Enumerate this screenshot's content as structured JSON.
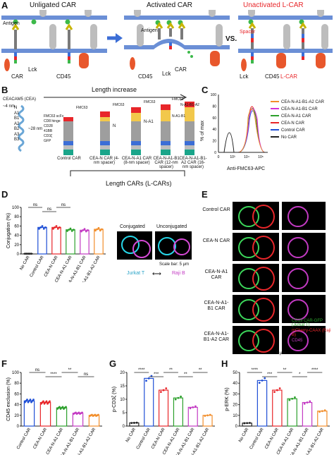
{
  "panel_a": {
    "label": "A",
    "titles": [
      "Unligated CAR",
      "Activated CAR",
      "Unactivated L-CAR"
    ],
    "labels": {
      "antigen": "Antigen",
      "car": "CAR",
      "lck": "Lck",
      "cd45": "CD45",
      "spacer": "Spacer",
      "lcar": "L-CAR",
      "vs": "VS."
    }
  },
  "panel_b": {
    "label": "B",
    "title": "Length increase",
    "ceacam5": "CEACAM5 (CEA)",
    "nm4": "~4 nm",
    "nm28": "~28 nm",
    "domains": [
      "N",
      "A1",
      "B1",
      "A2",
      "B2",
      "A3",
      "B3"
    ],
    "legend": [
      "FMC63 scFv",
      "CD8 hinge",
      "CD28",
      "41BB",
      "CD3ζ",
      "GFP"
    ],
    "fmc63": "FMC63",
    "constructs": [
      {
        "name": "Control CAR",
        "domain_label": ""
      },
      {
        "name": "CEA-N CAR (4-nm spacer)",
        "domain_label": "N"
      },
      {
        "name": "CEA-N-A1 CAR (8-nm spacer)",
        "domain_label": "N-A1"
      },
      {
        "name": "CEA-N-A1-B1 CAR (12-nm spacer)",
        "domain_label": "N-A1-B1"
      },
      {
        "name": "CEA-N-A1-B1-A2 CAR (16-nm spacer)",
        "domain_label": "N-A1-B1-A2"
      }
    ],
    "footer": "Length CARs (L-CARs)"
  },
  "panel_c": {
    "label": "C",
    "ylabel": "% of max",
    "xlabel": "Anti-FMC63-APC",
    "legend": [
      {
        "name": "CEA-N-A1-B1-A2 CAR",
        "color": "#f28e2b"
      },
      {
        "name": "CEA-N-A1-B1 CAR",
        "color": "#d62fd6"
      },
      {
        "name": "CEA-N-A1 CAR",
        "color": "#2ca02c"
      },
      {
        "name": "CEA-N CAR",
        "color": "#e8262a"
      },
      {
        "name": "Control CAR",
        "color": "#1f4fd6"
      },
      {
        "name": "No CAR",
        "color": "#222222"
      }
    ],
    "yticks": [
      "0",
      "20",
      "40",
      "60",
      "80",
      "100"
    ],
    "xticks": [
      "0",
      "10³",
      "10⁴",
      "10⁵"
    ]
  },
  "panel_d": {
    "label": "D",
    "ylabel": "Conjugation (%)",
    "conjugated": "Conjugated",
    "unconjugated": "Unconjugated",
    "scale": "Scale bar: 5 μm",
    "jurkat": "Jurkat T",
    "raji": "Raji B",
    "ns": "ns"
  },
  "panel_e": {
    "label": "E",
    "rows": [
      "Control CAR",
      "CEA-N CAR",
      "CEA-N-A1 CAR",
      "CEA-N-A1-B1 CAR",
      "CEA-N-A1-B1-A2 CAR"
    ],
    "legend1": "CD19 CAR-GFP (Jurkat T)",
    "legend2": "mCherry-CAAX (Raji B)",
    "legend3": "CD45",
    "scale": "5 μm"
  },
  "panel_f": {
    "label": "F",
    "ylabel": "CD45 exclusion (%)",
    "sig": [
      "ns",
      "****",
      "**",
      "ns"
    ]
  },
  "panel_g": {
    "label": "G",
    "ylabel": "p-CD3ζ (%)",
    "sig": [
      "****",
      "***",
      "**",
      "**",
      "**"
    ]
  },
  "panel_h": {
    "label": "H",
    "ylabel": "p-ERK (%)",
    "sig": [
      "****",
      "***",
      "**",
      "*",
      "****"
    ]
  },
  "colors": {
    "nocar": "#222222",
    "control": "#1f4fd6",
    "ceaN": "#e8262a",
    "ceaNA1": "#2ca02c",
    "ceaNA1B1": "#c33ac3",
    "ceaNA1B1A2": "#f28e2b",
    "membrane": "#6b8fd6",
    "receptor": "#bdbdbd",
    "cd45": "#e8572c"
  },
  "chart_data": [
    {
      "type": "bar",
      "panel": "D",
      "categories": [
        "No CAR",
        "Control CAR",
        "CEA-N CAR",
        "CEA-N-A1 CAR",
        "CEA-N-A1-B1 CAR",
        "CEA-N-A1-B1-A2 CAR"
      ],
      "values": [
        0.5,
        57,
        57,
        52,
        51,
        53
      ],
      "ylim": [
        0,
        100
      ],
      "yticks": [
        0,
        20,
        40,
        60,
        80,
        100
      ],
      "ylabel": "Conjugation (%)"
    },
    {
      "type": "bar",
      "panel": "F",
      "categories": [
        "Control CAR",
        "CEA-N CAR",
        "CEA-N-A1 CAR",
        "CEA-N-A1-B1 CAR",
        "CEA-N-A1-B1-A2 CAR"
      ],
      "values": [
        47,
        44,
        34,
        24,
        20
      ],
      "ylim": [
        0,
        100
      ],
      "yticks": [
        0,
        20,
        40,
        60,
        80,
        100
      ],
      "ylabel": "CD45 exclusion (%)"
    },
    {
      "type": "bar",
      "panel": "G",
      "categories": [
        "No CAR",
        "Control CAR",
        "CEA-N CAR",
        "CEA-N-A1 CAR",
        "CEA-N-A1-B1 CAR",
        "CEA-N-A1-B1-A2 CAR"
      ],
      "values": [
        1.2,
        17.8,
        13.4,
        10.5,
        7.0,
        4.0
      ],
      "ylim": [
        0,
        20
      ],
      "yticks": [
        0,
        5,
        10,
        15,
        20
      ],
      "ylabel": "p-CD3ζ (%)"
    },
    {
      "type": "bar",
      "panel": "H",
      "categories": [
        "No CAR",
        "Control CAR",
        "CEA-N CAR",
        "CEA-N-A1 CAR",
        "CEA-N-A1-B1 CAR",
        "CEA-N-A1-B1-A2 CAR"
      ],
      "values": [
        2.8,
        42.5,
        33.5,
        25.5,
        22.0,
        14.0
      ],
      "ylim": [
        0,
        50
      ],
      "yticks": [
        0,
        10,
        20,
        30,
        40,
        50
      ],
      "ylabel": "p-ERK (%)"
    }
  ]
}
